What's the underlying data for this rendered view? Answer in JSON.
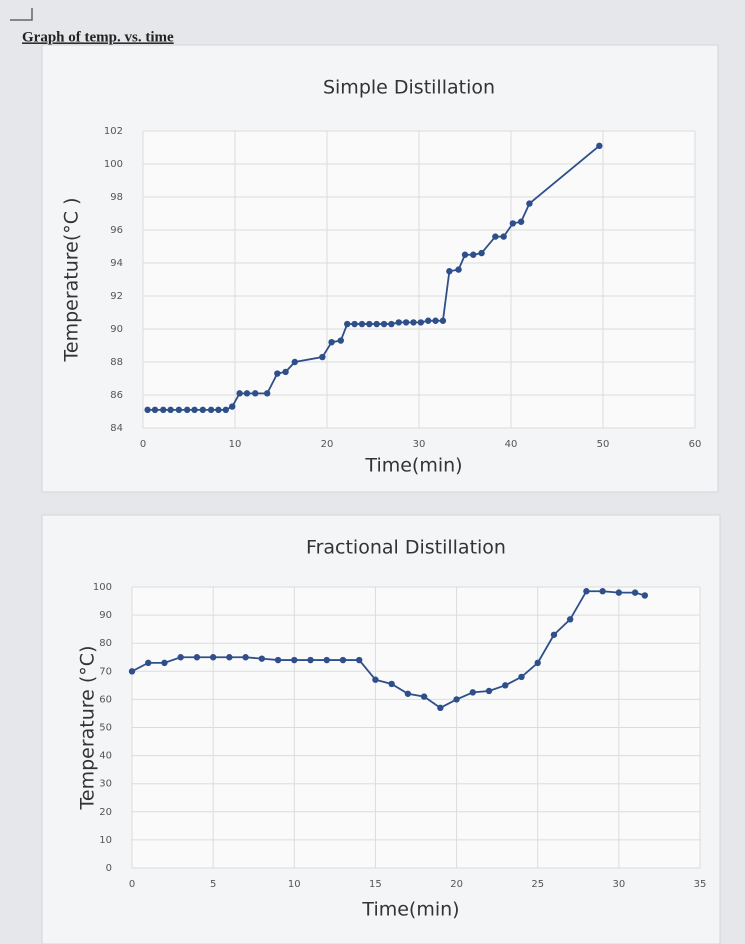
{
  "heading": "Graph of temp. vs. time",
  "chart_data": [
    {
      "type": "line",
      "title": "Simple Distillation",
      "xlabel": "Time(min)",
      "ylabel": "Temperature(°C )",
      "x": [
        0.5,
        1.3,
        2.2,
        3,
        3.9,
        4.8,
        5.6,
        6.5,
        7.4,
        8.2,
        9,
        9.7,
        10.5,
        11.3,
        12.2,
        13.5,
        14.6,
        15.5,
        16.5,
        19.5,
        20.5,
        21.5,
        22.2,
        23,
        23.8,
        24.6,
        25.4,
        26.2,
        27,
        27.8,
        28.6,
        29.4,
        30.2,
        31,
        31.8,
        32.6,
        33.3,
        34.3,
        35,
        35.9,
        36.8,
        38.3,
        39.2,
        40.2,
        41.1,
        42,
        49.6
      ],
      "values": [
        85.1,
        85.1,
        85.1,
        85.1,
        85.1,
        85.1,
        85.1,
        85.1,
        85.1,
        85.1,
        85.1,
        85.3,
        86.1,
        86.1,
        86.1,
        86.1,
        87.3,
        87.4,
        88.0,
        88.3,
        89.2,
        89.3,
        90.3,
        90.3,
        90.3,
        90.3,
        90.3,
        90.3,
        90.3,
        90.4,
        90.4,
        90.4,
        90.4,
        90.5,
        90.5,
        90.5,
        93.5,
        93.6,
        94.5,
        94.5,
        94.6,
        95.6,
        95.6,
        96.4,
        96.5,
        97.6,
        101.1
      ],
      "color": "#2e4f8a",
      "xlim": [
        0,
        60
      ],
      "xticks": [
        0,
        10,
        20,
        30,
        40,
        50,
        60
      ],
      "ylim": [
        84,
        102
      ],
      "yticks": [
        84,
        86,
        88,
        90,
        92,
        94,
        96,
        98,
        100,
        102
      ],
      "grid": true
    },
    {
      "type": "line",
      "title": "Fractional Distillation",
      "xlabel": "Time(min)",
      "ylabel": "Temperature (°C)",
      "x": [
        0,
        1,
        2,
        3,
        4,
        5,
        6,
        7,
        8,
        9,
        10,
        11,
        12,
        13,
        14,
        15,
        16,
        17,
        18,
        19,
        20,
        21,
        22,
        23,
        24,
        25,
        26,
        27,
        28,
        29,
        30,
        31,
        31.6
      ],
      "values": [
        70,
        73,
        73,
        75,
        75,
        75,
        75,
        75,
        74.5,
        74,
        74,
        74,
        74,
        74,
        74,
        67,
        65.5,
        62,
        61,
        57,
        60,
        62.5,
        63,
        65,
        68,
        73,
        83,
        88.5,
        98.5,
        98.5,
        98,
        98,
        97
      ],
      "color": "#2e4f8a",
      "xlim": [
        0,
        35
      ],
      "xticks": [
        0,
        5,
        10,
        15,
        20,
        25,
        30,
        35
      ],
      "ylim": [
        0,
        100
      ],
      "yticks": [
        0,
        10,
        20,
        30,
        40,
        50,
        60,
        70,
        80,
        90,
        100
      ],
      "grid": true
    }
  ]
}
